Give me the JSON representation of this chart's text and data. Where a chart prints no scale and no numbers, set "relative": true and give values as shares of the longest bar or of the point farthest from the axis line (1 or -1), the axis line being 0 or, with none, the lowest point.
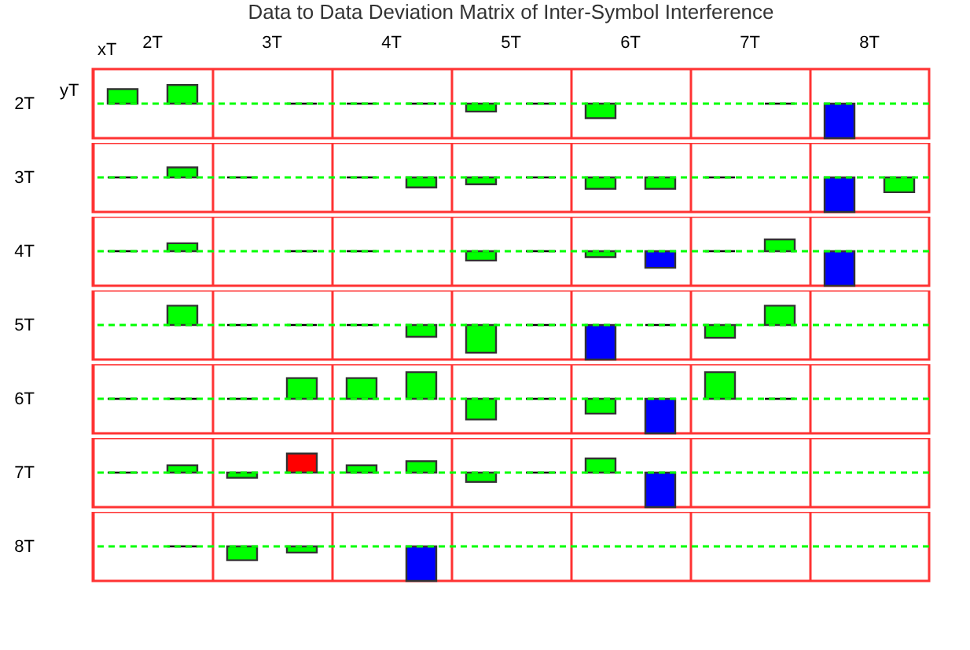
{
  "chart_data": [
    {
      "type": "bar",
      "title": "Data to Data Deviation Matrix of Inter-Symbol Interference",
      "annotations": [
        "xT",
        "yT"
      ],
      "categories": [
        "2T",
        "3T",
        "4T",
        "5T",
        "6T",
        "7T",
        "8T"
      ],
      "relative": true,
      "ylabel": "2T",
      "grid": "x",
      "tick_labels": "x",
      "ref_lines": [
        {
          "axis": "y",
          "value": 0,
          "color": "#00ff00",
          "line_style": "dashed"
        }
      ],
      "series": [
        {
          "values": [
            0.42,
            null,
            0,
            -0.23,
            -0.42,
            null,
            -1
          ],
          "colors": [
            "#00ff00",
            null,
            "#000000",
            "#00ff00",
            "#00ff00",
            null,
            "#0000ff"
          ]
        },
        {
          "values": [
            0.54,
            0,
            0,
            0,
            null,
            0,
            null
          ],
          "colors": [
            "#00ff00",
            "#000000",
            "#000000",
            "#000000",
            null,
            "#000000",
            null
          ]
        }
      ]
    },
    {
      "type": "bar",
      "categories": [
        null,
        null,
        null,
        null,
        null,
        null,
        null
      ],
      "relative": true,
      "ylabel": "3T",
      "grid": "x",
      "tick_labels": false,
      "ref_lines": [
        {
          "axis": "y",
          "value": 0,
          "color": "#00ff00",
          "line_style": "dashed"
        }
      ],
      "series": [
        {
          "values": [
            0,
            0,
            0,
            -0.2,
            -0.33,
            0,
            -1
          ],
          "colors": [
            "#000000",
            "#000000",
            "#000000",
            "#00ff00",
            "#00ff00",
            "#000000",
            "#0000ff"
          ]
        },
        {
          "values": [
            0.29,
            null,
            -0.29,
            0,
            -0.33,
            null,
            -0.43
          ],
          "colors": [
            "#00ff00",
            null,
            "#00ff00",
            "#000000",
            "#00ff00",
            null,
            "#00ff00"
          ]
        }
      ]
    },
    {
      "type": "bar",
      "categories": [
        null,
        null,
        null,
        null,
        null,
        null,
        null
      ],
      "relative": true,
      "ylabel": "4T",
      "grid": "x",
      "tick_labels": false,
      "ref_lines": [
        {
          "axis": "y",
          "value": 0,
          "color": "#00ff00",
          "line_style": "dashed"
        }
      ],
      "series": [
        {
          "values": [
            0,
            null,
            0,
            -0.27,
            -0.17,
            0,
            -1
          ],
          "colors": [
            "#000000",
            null,
            "#000000",
            "#00ff00",
            "#00ff00",
            "#000000",
            "#0000ff"
          ]
        },
        {
          "values": [
            0.23,
            0,
            null,
            0,
            -0.48,
            0.34,
            null
          ],
          "colors": [
            "#00ff00",
            "#000000",
            null,
            "#000000",
            "#0000ff",
            "#00ff00",
            null
          ]
        }
      ]
    },
    {
      "type": "bar",
      "categories": [
        null,
        null,
        null,
        null,
        null,
        null,
        null
      ],
      "relative": true,
      "ylabel": "5T",
      "grid": "x",
      "tick_labels": false,
      "ref_lines": [
        {
          "axis": "y",
          "value": 0,
          "color": "#00ff00",
          "line_style": "dashed"
        }
      ],
      "series": [
        {
          "values": [
            null,
            0,
            0,
            -0.8,
            -1,
            -0.37,
            null
          ],
          "colors": [
            null,
            "#000000",
            "#000000",
            "#00ff00",
            "#0000ff",
            "#00ff00",
            null
          ]
        },
        {
          "values": [
            0.56,
            0,
            -0.34,
            0,
            0,
            0.56,
            null
          ],
          "colors": [
            "#00ff00",
            "#000000",
            "#00ff00",
            "#000000",
            "#000000",
            "#00ff00",
            null
          ]
        }
      ]
    },
    {
      "type": "bar",
      "categories": [
        null,
        null,
        null,
        null,
        null,
        null,
        null
      ],
      "relative": true,
      "ylabel": "6T",
      "grid": "x",
      "tick_labels": false,
      "ref_lines": [
        {
          "axis": "y",
          "value": 0,
          "color": "#00ff00",
          "line_style": "dashed"
        }
      ],
      "series": [
        {
          "values": [
            0,
            0,
            0.6,
            -0.6,
            -0.43,
            0.77,
            null
          ],
          "colors": [
            "#000000",
            "#000000",
            "#00ff00",
            "#00ff00",
            "#00ff00",
            "#00ff00",
            null
          ]
        },
        {
          "values": [
            0,
            0.6,
            0.77,
            0,
            -1,
            0,
            null
          ],
          "colors": [
            "#000000",
            "#00ff00",
            "#00ff00",
            "#000000",
            "#0000ff",
            "#000000",
            null
          ]
        }
      ]
    },
    {
      "type": "bar",
      "categories": [
        null,
        null,
        null,
        null,
        null,
        null,
        null
      ],
      "relative": true,
      "ylabel": "7T",
      "grid": "x",
      "tick_labels": false,
      "ref_lines": [
        {
          "axis": "y",
          "value": 0,
          "color": "#00ff00",
          "line_style": "dashed"
        }
      ],
      "series": [
        {
          "values": [
            0,
            -0.15,
            0.21,
            -0.27,
            0.41,
            null,
            null
          ],
          "colors": [
            "#000000",
            "#00ff00",
            "#00ff00",
            "#00ff00",
            "#00ff00",
            null,
            null
          ]
        },
        {
          "values": [
            0.21,
            0.55,
            0.33,
            0,
            -1,
            null,
            null
          ],
          "colors": [
            "#00ff00",
            "#ff0000",
            "#00ff00",
            "#000000",
            "#0000ff",
            null,
            null
          ]
        }
      ]
    },
    {
      "type": "bar",
      "categories": [
        null,
        null,
        null,
        null,
        null,
        null,
        null
      ],
      "relative": true,
      "ylabel": "8T",
      "grid": "x",
      "tick_labels": false,
      "ref_lines": [
        {
          "axis": "y",
          "value": 0,
          "color": "#00ff00",
          "line_style": "dashed"
        }
      ],
      "series": [
        {
          "values": [
            null,
            -0.4,
            null,
            null,
            null,
            null,
            null
          ],
          "colors": [
            null,
            "#00ff00",
            null,
            null,
            null,
            null,
            null
          ]
        },
        {
          "values": [
            0,
            -0.18,
            -1,
            null,
            null,
            null,
            null
          ],
          "colors": [
            "#000000",
            "#00ff00",
            "#0000ff",
            null,
            null,
            null,
            null
          ]
        }
      ]
    }
  ]
}
